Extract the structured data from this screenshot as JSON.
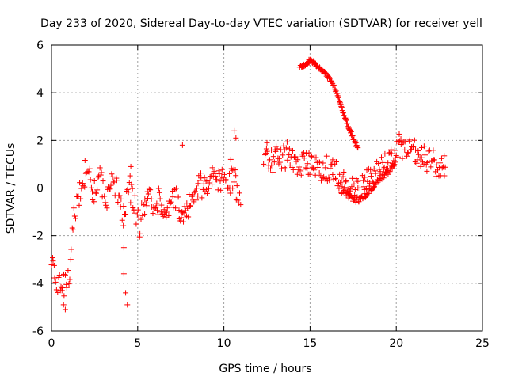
{
  "chart_data": {
    "type": "scatter",
    "title": "Day 233 of 2020, Sidereal Day-to-day VTEC variation (SDTVAR) for receiver yell",
    "xlabel": "GPS time / hours",
    "ylabel": "SDTVAR / TECUs",
    "xlim": [
      0,
      25
    ],
    "ylim": [
      -6,
      6
    ],
    "x_ticks": [
      0,
      5,
      10,
      15,
      20,
      25
    ],
    "y_ticks": [
      -6,
      -4,
      -2,
      0,
      2,
      4,
      6
    ],
    "x_tick_labels": [
      "0",
      "5",
      "10",
      "15",
      "20",
      "25"
    ],
    "y_tick_labels": [
      "-6",
      "-4",
      "-2",
      "0",
      "2",
      "4",
      "6"
    ],
    "grid": true,
    "marker": "+",
    "color": "#ff0000",
    "series": [
      {
        "name": "SDTVAR",
        "trend": [
          [
            0.0,
            -3.2
          ],
          [
            0.2,
            -3.6
          ],
          [
            0.4,
            -4.0
          ],
          [
            0.6,
            -4.2
          ],
          [
            0.8,
            -4.0
          ],
          [
            1.0,
            -3.6
          ],
          [
            1.1,
            -3.0
          ],
          [
            1.2,
            -2.2
          ],
          [
            1.3,
            -1.3
          ],
          [
            1.45,
            -0.5
          ],
          [
            1.6,
            -0.2
          ],
          [
            1.8,
            0.2
          ],
          [
            2.0,
            0.8
          ],
          [
            2.2,
            0.5
          ],
          [
            2.4,
            -0.3
          ],
          [
            2.6,
            0.3
          ],
          [
            2.8,
            0.6
          ],
          [
            3.0,
            0.0
          ],
          [
            3.2,
            -0.8
          ],
          [
            3.4,
            0.3
          ],
          [
            3.6,
            0.6
          ],
          [
            3.8,
            -0.2
          ],
          [
            4.0,
            -0.8
          ],
          [
            4.2,
            -1.2
          ],
          [
            4.4,
            -0.5
          ],
          [
            4.5,
            0.2
          ],
          [
            5.1,
            -1.6
          ],
          [
            5.3,
            -0.8
          ],
          [
            5.6,
            -0.4
          ],
          [
            6.0,
            -0.8
          ],
          [
            6.3,
            -0.4
          ],
          [
            6.6,
            -1.0
          ],
          [
            7.0,
            -0.6
          ],
          [
            7.3,
            -0.5
          ],
          [
            7.6,
            -1.2
          ],
          [
            8.0,
            -0.8
          ],
          [
            8.3,
            -0.4
          ],
          [
            8.6,
            0.2
          ],
          [
            9.0,
            -0.2
          ],
          [
            9.3,
            0.5
          ],
          [
            9.6,
            0.3
          ],
          [
            10.0,
            0.5
          ],
          [
            10.3,
            0.2
          ],
          [
            10.6,
            0.4
          ],
          [
            11.0,
            -0.8
          ],
          [
            12.4,
            1.5
          ],
          [
            12.7,
            1.0
          ],
          [
            13.0,
            1.4
          ],
          [
            13.4,
            1.2
          ],
          [
            13.8,
            1.5
          ],
          [
            14.2,
            1.1
          ],
          [
            14.6,
            1.0
          ],
          [
            15.0,
            1.1
          ],
          [
            15.4,
            0.9
          ],
          [
            15.8,
            0.8
          ],
          [
            16.2,
            0.8
          ],
          [
            16.6,
            0.6
          ],
          [
            17.0,
            0.2
          ],
          [
            17.4,
            0.0
          ],
          [
            17.8,
            -0.2
          ],
          [
            18.2,
            0.2
          ],
          [
            18.6,
            0.4
          ],
          [
            19.0,
            0.7
          ],
          [
            19.5,
            1.0
          ],
          [
            20.0,
            1.6
          ],
          [
            20.3,
            1.8
          ],
          [
            20.6,
            1.6
          ],
          [
            21.0,
            1.5
          ],
          [
            21.5,
            1.3
          ],
          [
            22.0,
            1.1
          ],
          [
            22.5,
            1.0
          ],
          [
            22.9,
            0.9
          ]
        ],
        "lower_branch": [
          [
            16.8,
            -0.1
          ],
          [
            17.2,
            -0.3
          ],
          [
            17.6,
            -0.5
          ],
          [
            18.0,
            -0.4
          ],
          [
            18.4,
            -0.2
          ],
          [
            18.8,
            0.2
          ],
          [
            19.2,
            0.5
          ],
          [
            19.6,
            0.8
          ],
          [
            20.0,
            1.2
          ]
        ],
        "upper_branch": [
          [
            14.4,
            5.1
          ],
          [
            14.8,
            5.2
          ],
          [
            15.0,
            5.4
          ],
          [
            15.3,
            5.2
          ],
          [
            15.6,
            5.0
          ],
          [
            16.0,
            4.7
          ],
          [
            16.3,
            4.4
          ],
          [
            16.6,
            3.9
          ],
          [
            16.9,
            3.2
          ],
          [
            17.2,
            2.6
          ],
          [
            17.5,
            2.1
          ],
          [
            17.8,
            1.6
          ]
        ],
        "outliers": [
          [
            0.7,
            -4.9
          ],
          [
            0.8,
            -5.1
          ],
          [
            4.2,
            -3.6
          ],
          [
            4.3,
            -4.4
          ],
          [
            4.4,
            -4.9
          ],
          [
            4.2,
            -2.5
          ],
          [
            4.6,
            0.9
          ],
          [
            7.6,
            1.8
          ],
          [
            10.4,
            1.2
          ],
          [
            10.6,
            2.4
          ],
          [
            10.7,
            2.1
          ],
          [
            12.5,
            1.9
          ],
          [
            12.6,
            0.8
          ],
          [
            12.3,
            1.0
          ]
        ]
      }
    ]
  }
}
